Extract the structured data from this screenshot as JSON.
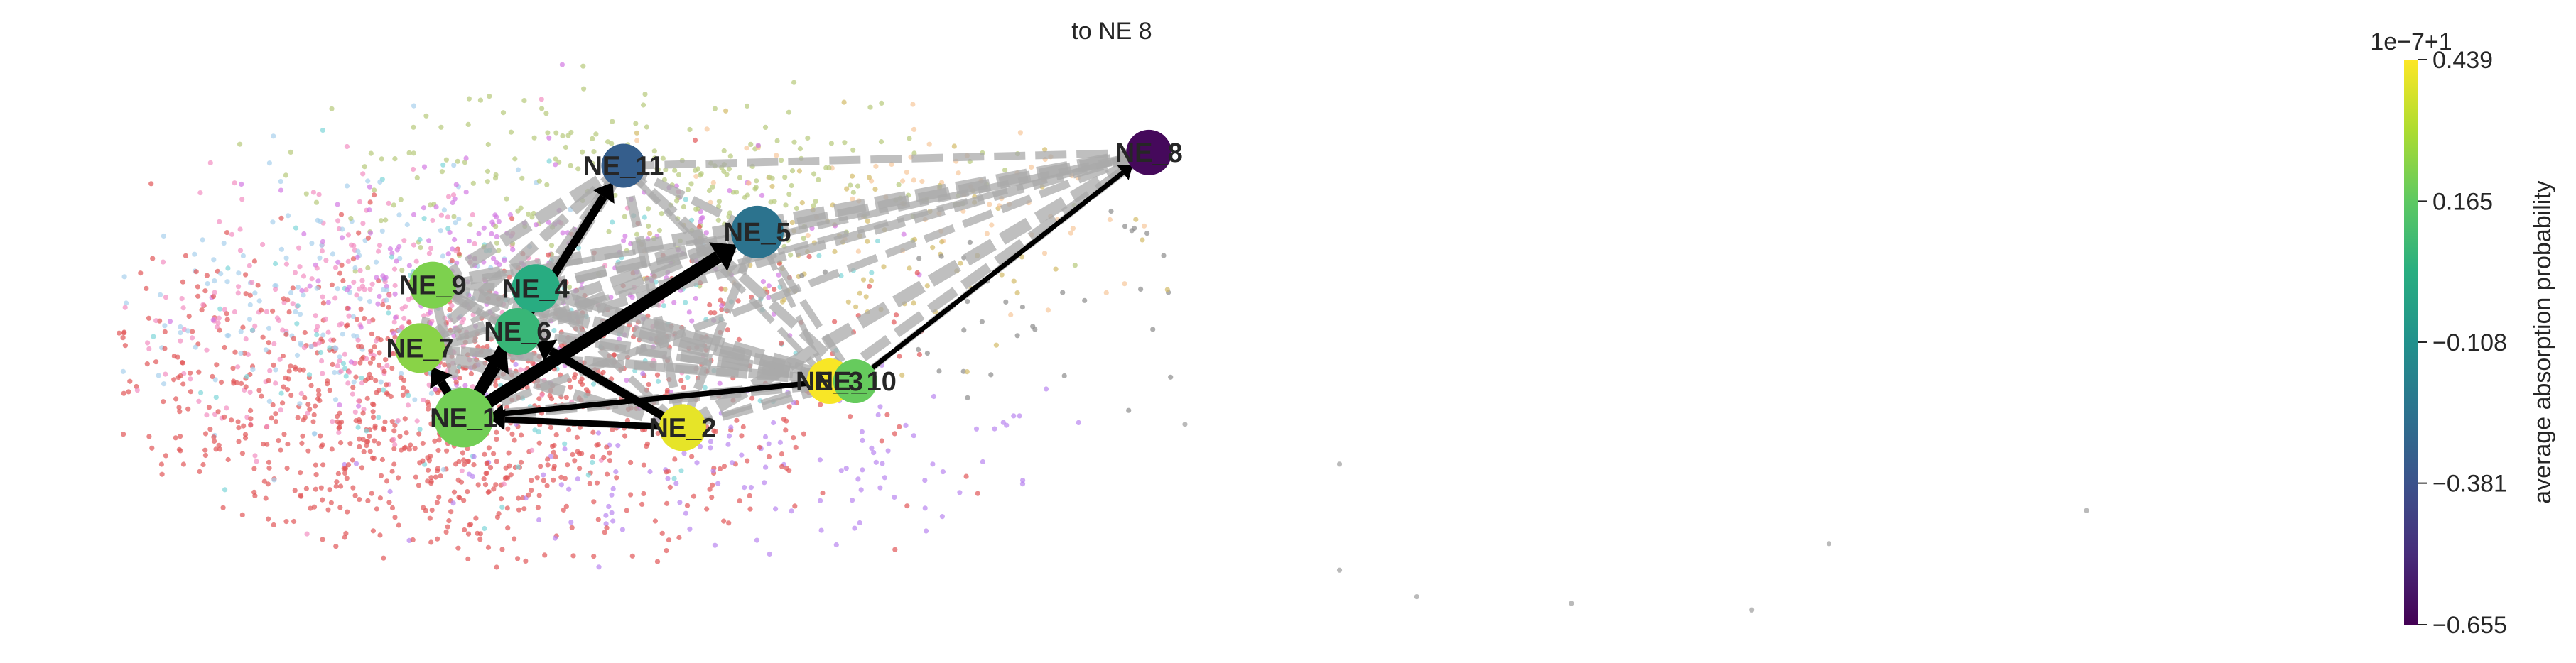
{
  "chart_data": {
    "type": "scatter",
    "title": "to NE 8",
    "nodes": [
      {
        "name": "NE_1",
        "x": 0.18,
        "y": 0.37,
        "value": 0.2,
        "size": 1.0
      },
      {
        "name": "NE_2",
        "x": 0.265,
        "y": 0.355,
        "value": 0.4,
        "size": 0.55
      },
      {
        "name": "NE_3",
        "x": 0.322,
        "y": 0.425,
        "value": 0.43,
        "size": 0.5
      },
      {
        "name": "NE_4",
        "x": 0.208,
        "y": 0.565,
        "value": 0.02,
        "size": 0.6
      },
      {
        "name": "NE_5",
        "x": 0.294,
        "y": 0.65,
        "value": -0.24,
        "size": 0.75
      },
      {
        "name": "NE_6",
        "x": 0.201,
        "y": 0.5,
        "value": 0.07,
        "size": 0.55
      },
      {
        "name": "NE_7",
        "x": 0.163,
        "y": 0.475,
        "value": 0.24,
        "size": 0.65
      },
      {
        "name": "NE_8",
        "x": 0.446,
        "y": 0.77,
        "value": -0.63,
        "size": 0.5
      },
      {
        "name": "NE_9",
        "x": 0.168,
        "y": 0.57,
        "value": 0.22,
        "size": 0.55
      },
      {
        "name": "NE_10",
        "x": 0.332,
        "y": 0.425,
        "value": 0.18,
        "size": 0.45
      },
      {
        "name": "NE_11",
        "x": 0.242,
        "y": 0.75,
        "value": -0.33,
        "size": 0.45
      }
    ],
    "arrows": [
      {
        "from": "NE_2",
        "to": "NE_1",
        "weight": 0.35
      },
      {
        "from": "NE_3",
        "to": "NE_1",
        "weight": 0.25
      },
      {
        "from": "NE_1",
        "to": "NE_6",
        "weight": 0.8
      },
      {
        "from": "NE_1",
        "to": "NE_5",
        "weight": 1.0
      },
      {
        "from": "NE_1",
        "to": "NE_4",
        "weight": 0.7
      },
      {
        "from": "NE_1",
        "to": "NE_7",
        "weight": 0.6
      },
      {
        "from": "NE_2",
        "to": "NE_6",
        "weight": 0.55
      },
      {
        "from": "NE_6",
        "to": "NE_11",
        "weight": 0.55
      },
      {
        "from": "NE_10",
        "to": "NE_8",
        "weight": 0.2
      }
    ],
    "colorbar": {
      "label": "average absorption probability",
      "offset_label": "1e−7+1",
      "ticks": [
        "0.439",
        "0.165",
        "−0.108",
        "−0.381",
        "−0.655"
      ],
      "tick_values": [
        0.439,
        0.165,
        -0.108,
        -0.381,
        -0.655
      ],
      "range": [
        -0.655,
        0.439
      ],
      "colormap": "viridis"
    },
    "background_points": {
      "cell_clusters": "scatter",
      "colors": [
        "#e15759",
        "#f28ec2",
        "#d37be3",
        "#b986f0",
        "#b7c97b",
        "#7fd6d9",
        "#a8d0ec",
        "#f6c79b",
        "#8c8c8c",
        "#d3ba68"
      ]
    },
    "grid": false,
    "edge_color": "#a9a9a9"
  }
}
